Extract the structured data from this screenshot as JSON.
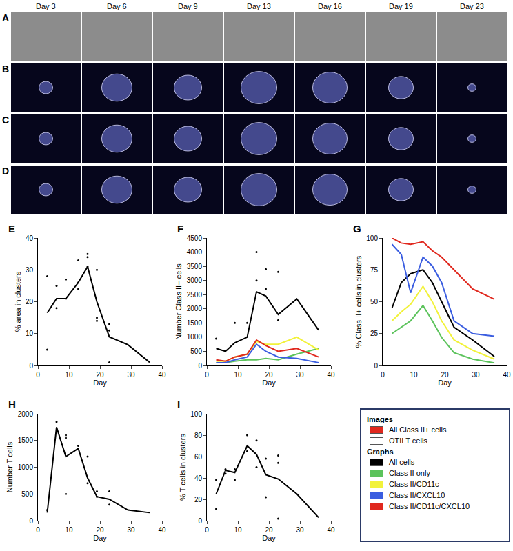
{
  "image_panels": {
    "rows": [
      "A",
      "B",
      "C",
      "D"
    ],
    "days": [
      "Day 3",
      "Day 6",
      "Day 9",
      "Day 13",
      "Day 16",
      "Day 19",
      "Day 23"
    ]
  },
  "chart_data": [
    {
      "panel": "E",
      "type": "line",
      "x_label": "Day",
      "y_label": "% area in clusters",
      "xlim": [
        0,
        40
      ],
      "xticks": [
        0,
        10,
        20,
        30,
        40
      ],
      "ylim": [
        0,
        40
      ],
      "yticks": [
        0,
        10,
        20,
        30,
        40
      ],
      "series": [
        {
          "type": "line",
          "color": "#000000",
          "x": [
            3,
            6,
            9,
            13,
            16,
            19,
            23,
            29,
            36
          ],
          "values": [
            16.5,
            21,
            21,
            26,
            31,
            20,
            9,
            6.5,
            1
          ]
        },
        {
          "type": "scatter",
          "color": "#000000",
          "x": [
            3,
            3,
            6,
            6,
            9,
            9,
            13,
            13,
            13,
            16,
            16,
            16,
            19,
            19,
            19,
            23,
            23,
            23
          ],
          "values": [
            28,
            5,
            25,
            18,
            27,
            21,
            33,
            24,
            26,
            35,
            34,
            31,
            30,
            15,
            14,
            13,
            11,
            1
          ]
        }
      ]
    },
    {
      "panel": "F",
      "type": "line",
      "x_label": "Day",
      "y_label": "Number Class II+ cells",
      "xlim": [
        0,
        40
      ],
      "xticks": [
        0,
        10,
        20,
        30,
        40
      ],
      "ylim": [
        0,
        4500
      ],
      "yticks": [
        0,
        500,
        1000,
        1500,
        2000,
        2500,
        3000,
        3500,
        4000,
        4500
      ],
      "series": [
        {
          "name": "All cells",
          "type": "line",
          "color": "#000000",
          "x": [
            3,
            6,
            9,
            13,
            16,
            19,
            23,
            29,
            36
          ],
          "values": [
            600,
            500,
            800,
            1000,
            2600,
            2450,
            1800,
            2350,
            1250
          ]
        },
        {
          "name": "Class II only",
          "type": "line",
          "color": "#5cc35c",
          "x": [
            3,
            6,
            9,
            13,
            16,
            19,
            23,
            29,
            36
          ],
          "values": [
            100,
            100,
            150,
            200,
            200,
            250,
            200,
            400,
            600
          ]
        },
        {
          "name": "Class II/CD11c",
          "type": "line",
          "color": "#f2f23a",
          "x": [
            3,
            6,
            9,
            13,
            16,
            19,
            23,
            29,
            36
          ],
          "values": [
            150,
            150,
            300,
            400,
            850,
            750,
            750,
            1000,
            550
          ]
        },
        {
          "name": "Class II/CXCL10",
          "type": "line",
          "color": "#3a5de0",
          "x": [
            3,
            6,
            9,
            13,
            16,
            19,
            23,
            29,
            36
          ],
          "values": [
            100,
            100,
            200,
            300,
            750,
            500,
            300,
            250,
            100
          ]
        },
        {
          "name": "Class II/CD11c/CXCL10",
          "type": "line",
          "color": "#e0281e",
          "x": [
            3,
            6,
            9,
            13,
            16,
            19,
            23,
            29,
            36
          ],
          "values": [
            200,
            150,
            300,
            400,
            900,
            700,
            500,
            600,
            300
          ]
        },
        {
          "type": "scatter",
          "color": "#000000",
          "x": [
            3,
            9,
            13,
            16,
            16,
            19,
            19,
            23,
            23
          ],
          "values": [
            950,
            1500,
            1500,
            4000,
            3000,
            3400,
            2700,
            3300,
            1600
          ]
        }
      ]
    },
    {
      "panel": "G",
      "type": "line",
      "x_label": "Day",
      "y_label": "% Class II+ cells in clusters",
      "xlim": [
        0,
        40
      ],
      "xticks": [
        0,
        10,
        20,
        30,
        40
      ],
      "ylim": [
        0,
        100
      ],
      "yticks": [
        0,
        25,
        50,
        75,
        100
      ],
      "series": [
        {
          "name": "All cells",
          "type": "line",
          "color": "#000000",
          "x": [
            3,
            6,
            9,
            13,
            16,
            19,
            23,
            29,
            36
          ],
          "values": [
            45,
            65,
            72,
            75,
            65,
            50,
            30,
            20,
            7
          ]
        },
        {
          "name": "Class II only",
          "type": "line",
          "color": "#5cc35c",
          "x": [
            3,
            6,
            9,
            13,
            16,
            19,
            23,
            29,
            36
          ],
          "values": [
            25,
            30,
            35,
            47,
            35,
            22,
            10,
            5,
            2
          ]
        },
        {
          "name": "Class II/CD11c",
          "type": "line",
          "color": "#f2f23a",
          "x": [
            3,
            6,
            9,
            13,
            16,
            19,
            23,
            29,
            36
          ],
          "values": [
            35,
            42,
            48,
            62,
            50,
            35,
            20,
            12,
            5
          ]
        },
        {
          "name": "Class II/CXCL10",
          "type": "line",
          "color": "#3a5de0",
          "x": [
            3,
            6,
            9,
            13,
            16,
            19,
            23,
            29,
            36
          ],
          "values": [
            95,
            87,
            57,
            85,
            78,
            65,
            35,
            25,
            23
          ]
        },
        {
          "name": "Class II/CD11c/CXCL10",
          "type": "line",
          "color": "#e0281e",
          "x": [
            3,
            6,
            9,
            13,
            16,
            19,
            23,
            29,
            36
          ],
          "values": [
            100,
            96,
            95,
            97,
            90,
            85,
            75,
            60,
            52
          ]
        }
      ]
    },
    {
      "panel": "H",
      "type": "line",
      "x_label": "Day",
      "y_label": "Number T cells",
      "xlim": [
        0,
        40
      ],
      "xticks": [
        0,
        10,
        20,
        30,
        40
      ],
      "ylim": [
        0,
        2000
      ],
      "yticks": [
        0,
        500,
        1000,
        1500,
        2000
      ],
      "series": [
        {
          "type": "line",
          "color": "#000000",
          "x": [
            3,
            6,
            9,
            13,
            16,
            19,
            23,
            29,
            36
          ],
          "values": [
            150,
            1750,
            1200,
            1350,
            800,
            450,
            400,
            200,
            150
          ]
        },
        {
          "type": "scatter",
          "color": "#000000",
          "x": [
            3,
            6,
            9,
            9,
            9,
            13,
            16,
            16,
            19,
            19,
            23,
            23
          ],
          "values": [
            200,
            1850,
            1600,
            1550,
            500,
            1400,
            1200,
            700,
            550,
            450,
            550,
            300
          ]
        }
      ]
    },
    {
      "panel": "I",
      "type": "line",
      "x_label": "Day",
      "y_label": "% T cells in clusters",
      "xlim": [
        0,
        40
      ],
      "xticks": [
        0,
        10,
        20,
        30,
        40
      ],
      "ylim": [
        0,
        100
      ],
      "yticks": [
        0,
        20,
        40,
        60,
        80,
        100
      ],
      "series": [
        {
          "type": "line",
          "color": "#000000",
          "x": [
            3,
            6,
            9,
            13,
            16,
            19,
            23,
            29,
            36
          ],
          "values": [
            25,
            47,
            45,
            70,
            62,
            43,
            39,
            25,
            3
          ]
        },
        {
          "type": "scatter",
          "color": "#000000",
          "x": [
            3,
            3,
            6,
            6,
            9,
            9,
            13,
            13,
            16,
            16,
            19,
            19,
            23,
            23,
            23
          ],
          "values": [
            38,
            11,
            48,
            44,
            48,
            38,
            80,
            65,
            75,
            50,
            58,
            22,
            61,
            54,
            2
          ]
        }
      ]
    }
  ],
  "legend_box": {
    "sections": [
      {
        "title": "Images",
        "entries": [
          {
            "name": "All Class II+ cells",
            "color": "#e0281e"
          },
          {
            "name": "OTII T cells",
            "color": "#ffffff"
          }
        ]
      },
      {
        "title": "Graphs",
        "entries": [
          {
            "name": "All cells",
            "color": "#000000"
          },
          {
            "name": "Class II only",
            "color": "#5cc35c"
          },
          {
            "name": "Class II/CD11c",
            "color": "#f2f23a"
          },
          {
            "name": "Class II/CXCL10",
            "color": "#3a5de0"
          },
          {
            "name": "Class II/CD11c/CXCL10",
            "color": "#e0281e"
          }
        ]
      }
    ]
  }
}
